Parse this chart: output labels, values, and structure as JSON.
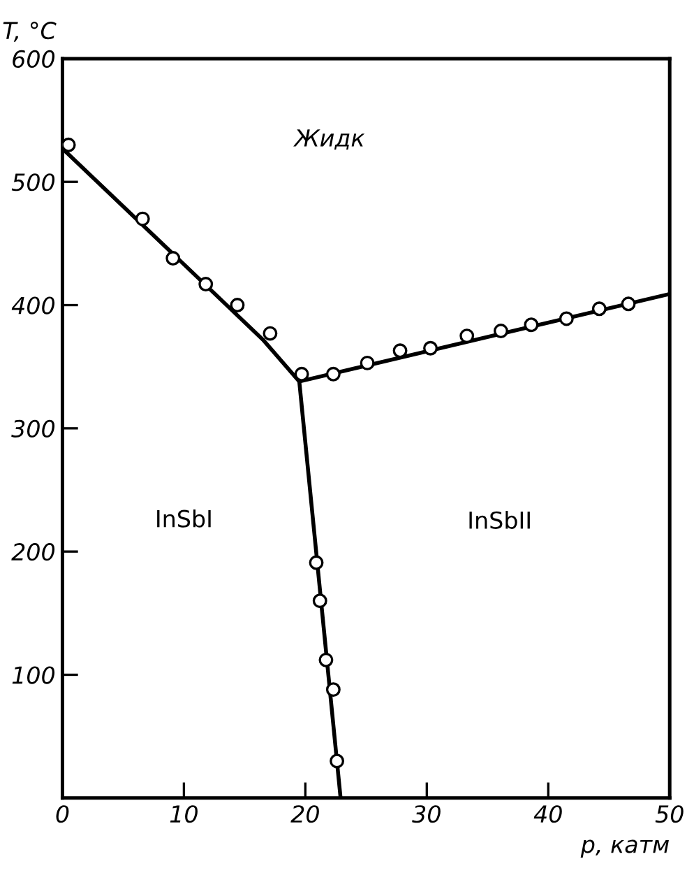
{
  "chart_data": {
    "type": "line",
    "xlabel": "p, катм",
    "ylabel": "T, °C",
    "xlim": [
      0,
      50
    ],
    "ylim": [
      0,
      600
    ],
    "xticks": [
      0,
      10,
      20,
      30,
      40,
      50
    ],
    "yticks": [
      100,
      200,
      300,
      400,
      500,
      600
    ],
    "grid": false,
    "legend": false,
    "series": [
      {
        "color": "#000000",
        "line_style": "solid",
        "marker": "none",
        "x": [
          0,
          16.5,
          19.5
        ],
        "values": [
          527,
          372,
          338
        ]
      },
      {
        "color": "#000000",
        "line_style": "solid",
        "marker": "none",
        "x": [
          19.5,
          50
        ],
        "values": [
          338,
          409
        ]
      },
      {
        "color": "#000000",
        "line_style": "solid",
        "marker": "none",
        "x": [
          19.5,
          22.9
        ],
        "values": [
          338,
          0
        ]
      },
      {
        "type": "scatter",
        "color": "#000000",
        "marker": "circle",
        "x": [
          0.5,
          6.6,
          9.1,
          11.8,
          14.4,
          17.1,
          19.7
        ],
        "values": [
          530,
          470,
          438,
          417,
          400,
          377,
          344
        ]
      },
      {
        "type": "scatter",
        "color": "#000000",
        "marker": "circle",
        "x": [
          22.3,
          25.1,
          27.8,
          30.3,
          33.3,
          36.1,
          38.6,
          41.5,
          44.2,
          46.6
        ],
        "values": [
          344,
          353,
          363,
          365,
          375,
          379,
          384,
          389,
          397,
          401
        ]
      },
      {
        "type": "scatter",
        "color": "#000000",
        "marker": "circle",
        "x": [
          20.9,
          21.2,
          21.7,
          22.3,
          22.6
        ],
        "values": [
          191,
          160,
          112,
          88,
          30
        ]
      }
    ],
    "annotations": [
      "Жидк",
      "InSbI",
      "InSbII"
    ]
  }
}
